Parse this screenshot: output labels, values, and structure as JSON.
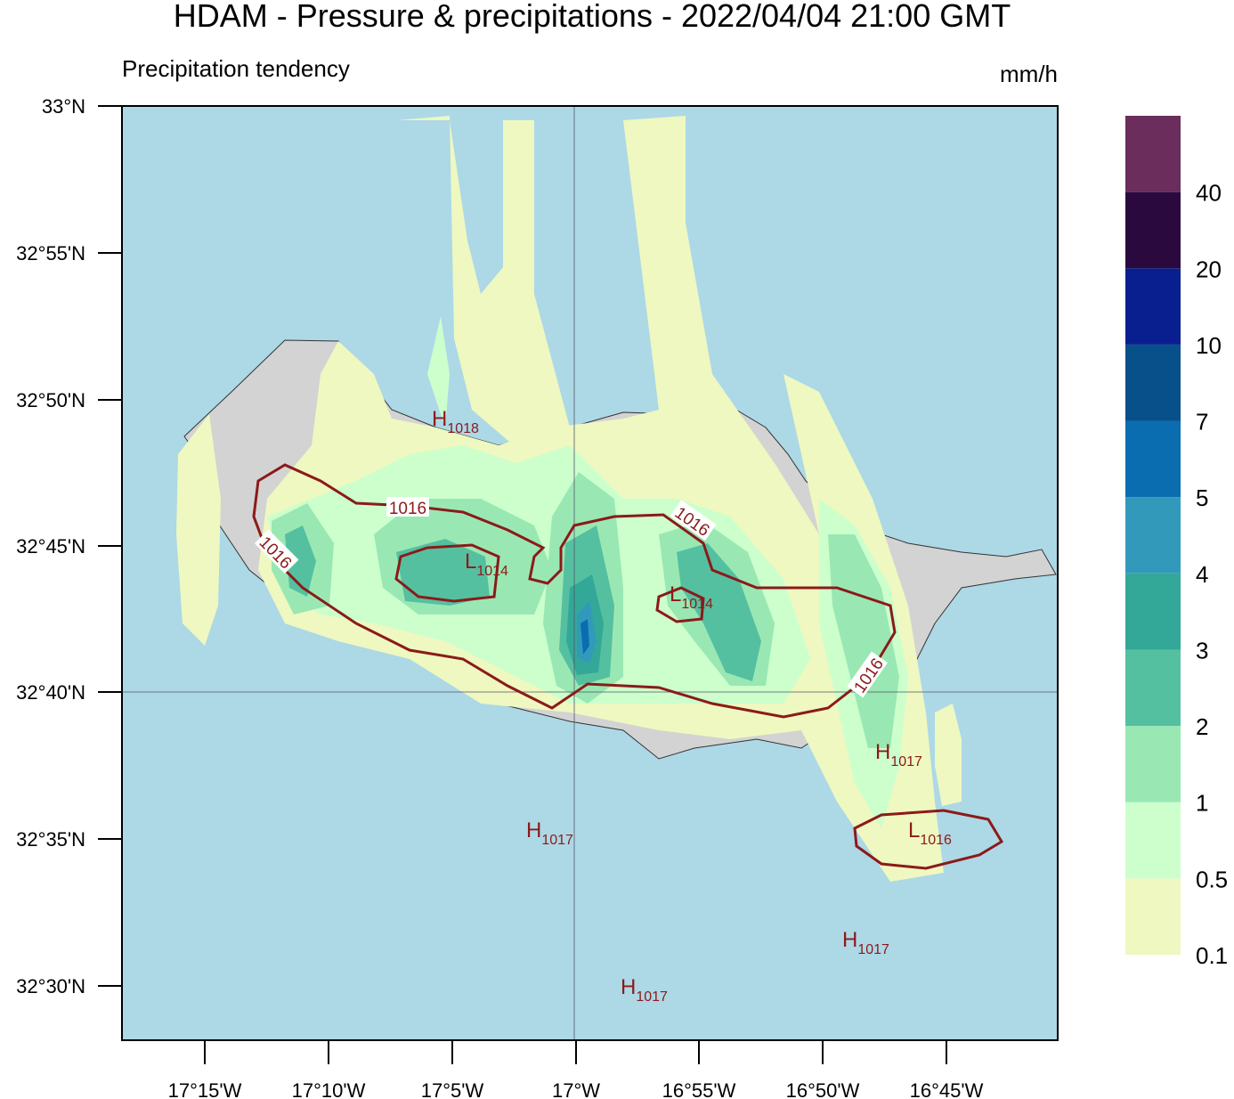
{
  "header": {
    "title": "HDAM - Pressure & precipitations  -  2022/04/04  21:00 GMT",
    "subtitle": "Precipitation tendency",
    "unit": "mm/h"
  },
  "map": {
    "lat_ticks": [
      "33°N",
      "32°55'N",
      "32°50'N",
      "32°45'N",
      "32°40'N",
      "32°35'N",
      "32°30'N"
    ],
    "lon_ticks": [
      "17°15'W",
      "17°10'W",
      "17°5'W",
      "17°W",
      "16°55'W",
      "16°50'W",
      "16°45'W"
    ]
  },
  "colorbar": {
    "colors": [
      "#eef8c0",
      "#ccffcc",
      "#99e8b4",
      "#55c0a0",
      "#33a898",
      "#3399bb",
      "#0a6db0",
      "#08508a",
      "#0a1f8f",
      "#2a0a3e",
      "#6b2d5c"
    ],
    "labels": [
      "0.1",
      "0.5",
      "1",
      "2",
      "3",
      "4",
      "5",
      "7",
      "10",
      "20",
      "40"
    ]
  },
  "pressure_centers": [
    {
      "kind": "H",
      "value": "1018"
    },
    {
      "kind": "L",
      "value": "1014"
    },
    {
      "kind": "L",
      "value": "1014"
    },
    {
      "kind": "H",
      "value": "1017"
    },
    {
      "kind": "L",
      "value": "1016"
    },
    {
      "kind": "H",
      "value": "1017"
    },
    {
      "kind": "H",
      "value": "1017"
    },
    {
      "kind": "H",
      "value": "1017"
    }
  ],
  "contour_labels": [
    "1016",
    "1016",
    "1016",
    "1016"
  ]
}
